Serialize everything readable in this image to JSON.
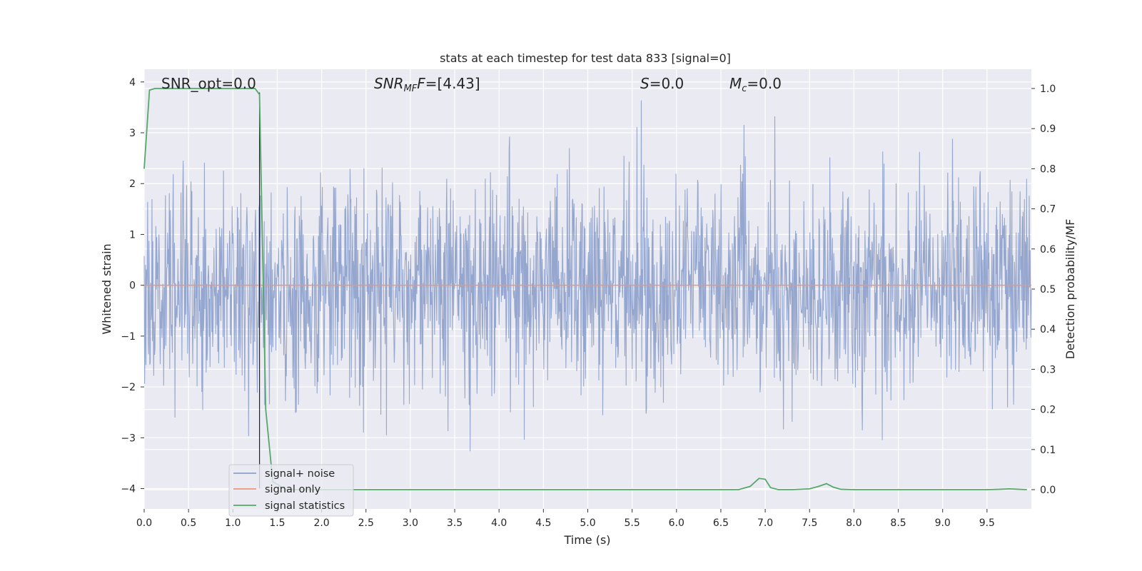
{
  "chart_data": {
    "type": "line",
    "title": "stats at each timestep for test data 833 [signal=0]",
    "xlabel": "Time (s)",
    "ylabel_left": "Whitened strain",
    "ylabel_right": "Detection probability/MF",
    "xlim": [
      0.0,
      10.0
    ],
    "ylim_left": [
      -4.4,
      4.25
    ],
    "ylim_right": [
      -0.048,
      1.048
    ],
    "x_ticks": [
      "0.0",
      "0.5",
      "1.0",
      "1.5",
      "2.0",
      "2.5",
      "3.0",
      "3.5",
      "4.0",
      "4.5",
      "5.0",
      "5.5",
      "6.0",
      "6.5",
      "7.0",
      "7.5",
      "8.0",
      "8.5",
      "9.0",
      "9.5"
    ],
    "y_left_ticks": [
      "4",
      "3",
      "2",
      "1",
      "0",
      "−1",
      "−2",
      "−3",
      "−4"
    ],
    "y_right_ticks": [
      "1.0",
      "0.9",
      "0.8",
      "0.7",
      "0.6",
      "0.5",
      "0.4",
      "0.3",
      "0.2",
      "0.1",
      "0.0"
    ],
    "grid": true,
    "legend_position": "lower-left",
    "annotations": {
      "snr_opt": "SNR_opt=0.0",
      "snr_mf": "=[4.43]",
      "snr_mf_symbol": "SNR",
      "snr_mf_sub": "MF",
      "s_symbol": "S",
      "s_value": "=0.0",
      "mc_symbol": "M",
      "mc_sub": "c",
      "mc_value": "=0.0"
    },
    "series": [
      {
        "name": "signal+ noise",
        "axis": "left",
        "color": "#8da0cb",
        "description_values": "white Gaussian noise, roughly ±1.5 typical, extremes near ±4",
        "noise_std": 1.0,
        "n_samples": 2048
      },
      {
        "name": "signal only",
        "axis": "left",
        "color": "#e9967a",
        "x": [
          0.0,
          10.0
        ],
        "y": [
          0.0,
          0.0
        ]
      },
      {
        "name": "signal statistics",
        "axis": "right",
        "color": "#55a868",
        "x": [
          0.0,
          0.06,
          0.12,
          0.5,
          1.0,
          1.25,
          1.3,
          1.37,
          1.45,
          1.6,
          2.0,
          3.0,
          4.0,
          5.0,
          6.0,
          6.7,
          6.83,
          6.93,
          7.0,
          7.06,
          7.15,
          7.3,
          7.5,
          7.6,
          7.69,
          7.77,
          7.85,
          8.0,
          9.0,
          9.5,
          9.65,
          9.75,
          9.85,
          9.95
        ],
        "y": [
          0.8,
          0.996,
          1.0,
          1.0,
          1.0,
          1.0,
          0.985,
          0.2,
          0.02,
          0.0,
          0.0,
          0.0,
          0.0,
          0.0,
          0.0,
          0.0,
          0.008,
          0.028,
          0.026,
          0.005,
          0.0,
          0.0,
          0.002,
          0.008,
          0.015,
          0.006,
          0.001,
          0.0,
          0.0,
          0.0,
          0.001,
          0.002,
          0.001,
          0.0
        ]
      }
    ],
    "vline": {
      "x": 1.3,
      "color": "#222222"
    },
    "colors": {
      "plot_background": "#eaeaf2",
      "grid": "#ffffff"
    }
  }
}
